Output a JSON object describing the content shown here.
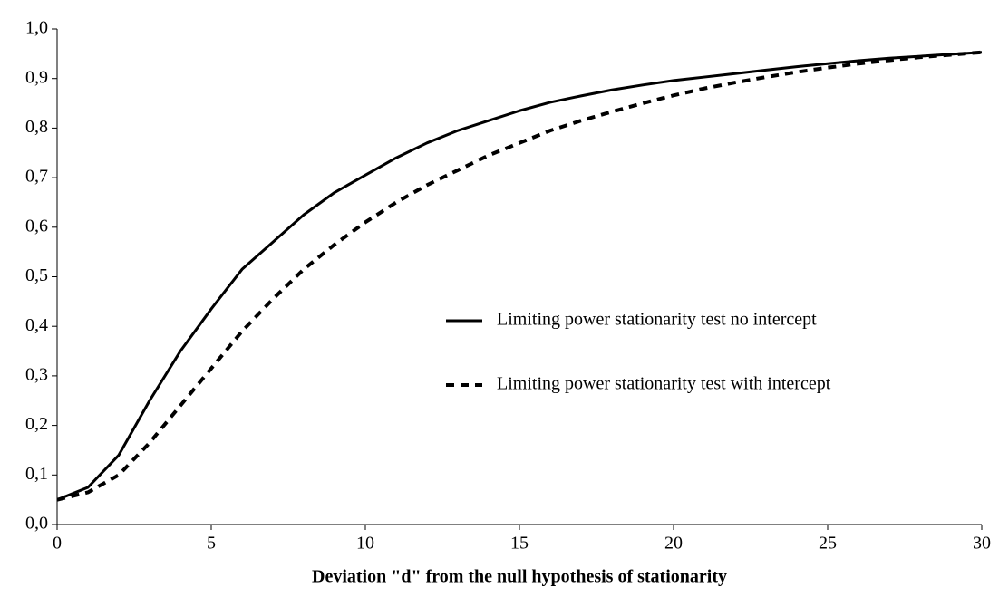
{
  "chart_data": {
    "type": "line",
    "x_label": "Deviation \"d\" from the null hypothesis of stationarity",
    "x": [
      0,
      1,
      2,
      3,
      4,
      5,
      6,
      7,
      8,
      9,
      10,
      11,
      12,
      13,
      14,
      15,
      16,
      17,
      18,
      19,
      20,
      21,
      22,
      23,
      24,
      25,
      26,
      27,
      28,
      29,
      30
    ],
    "series": [
      {
        "name": "Limiting power stationarity test no intercept",
        "color": "#000000",
        "dash": "solid",
        "values": [
          0.05,
          0.075,
          0.14,
          0.25,
          0.35,
          0.435,
          0.515,
          0.57,
          0.625,
          0.67,
          0.705,
          0.74,
          0.77,
          0.795,
          0.815,
          0.835,
          0.852,
          0.865,
          0.877,
          0.887,
          0.896,
          0.903,
          0.91,
          0.917,
          0.924,
          0.93,
          0.936,
          0.941,
          0.945,
          0.949,
          0.953
        ]
      },
      {
        "name": "Limiting power stationarity test with intercept",
        "color": "#000000",
        "dash": "dashed",
        "values": [
          0.05,
          0.065,
          0.1,
          0.165,
          0.24,
          0.315,
          0.39,
          0.455,
          0.515,
          0.565,
          0.61,
          0.65,
          0.685,
          0.715,
          0.745,
          0.77,
          0.795,
          0.815,
          0.833,
          0.85,
          0.866,
          0.88,
          0.892,
          0.903,
          0.913,
          0.922,
          0.93,
          0.937,
          0.943,
          0.948,
          0.953
        ]
      }
    ],
    "xlim": [
      0,
      30
    ],
    "xticks": [
      0,
      5,
      10,
      15,
      20,
      25,
      30
    ],
    "ylim": [
      0,
      1
    ],
    "yticks": [
      {
        "value": 0,
        "label": "0,0"
      },
      {
        "value": 0.1,
        "label": "0,1"
      },
      {
        "value": 0.2,
        "label": "0,2"
      },
      {
        "value": 0.3,
        "label": "0,3"
      },
      {
        "value": 0.4,
        "label": "0,4"
      },
      {
        "value": 0.5,
        "label": "0,5"
      },
      {
        "value": 0.6,
        "label": "0,6"
      },
      {
        "value": 0.7,
        "label": "0,7"
      },
      {
        "value": 0.8,
        "label": "0,8"
      },
      {
        "value": 0.9,
        "label": "0,9"
      },
      {
        "value": 1,
        "label": "1,0"
      }
    ],
    "grid": false,
    "legend": "lower right"
  }
}
